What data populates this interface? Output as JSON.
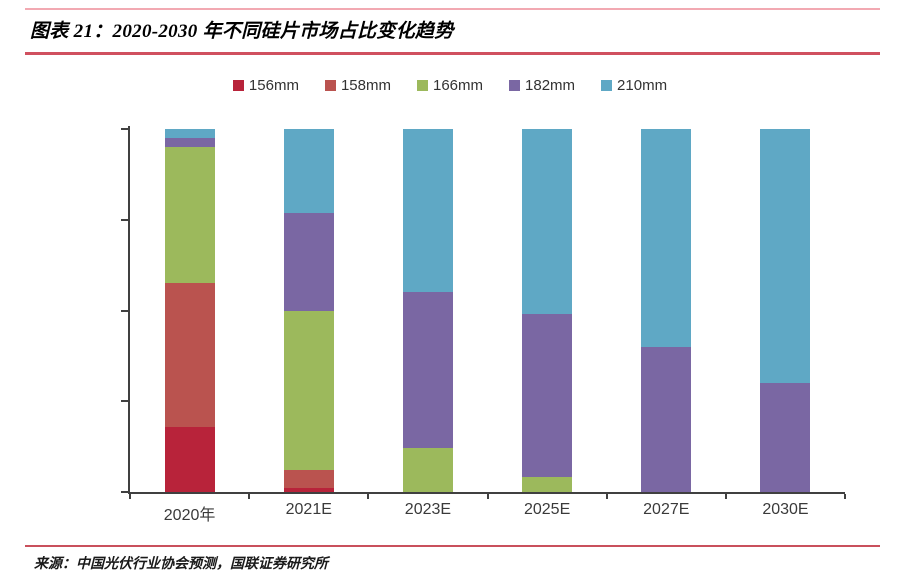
{
  "header": {
    "title": "图表 21：2020-2030 年不同硅片市场占比变化趋势"
  },
  "source": {
    "text": "来源：中国光伏行业协会预测，国联证券研究所"
  },
  "colors": {
    "rule_top": "#F2A9B2",
    "rule_title": "#D0505F",
    "rule_source": "#C9505C",
    "axis": "#404040"
  },
  "chart_data": {
    "type": "bar",
    "stacked": true,
    "unit": "percent",
    "title": "图表 21：2020-2030 年不同硅片市场占比变化趋势",
    "categories": [
      "2020年",
      "2021E",
      "2023E",
      "2025E",
      "2027E",
      "2030E"
    ],
    "series": [
      {
        "name": "156mm",
        "color": "#B8233A",
        "values": [
          18,
          1,
          0,
          0,
          0,
          0
        ]
      },
      {
        "name": "158mm",
        "color": "#BA534F",
        "values": [
          39.5,
          5,
          0,
          0,
          0,
          0
        ]
      },
      {
        "name": "166mm",
        "color": "#9CB95C",
        "values": [
          37.5,
          44,
          12,
          4,
          0,
          0
        ]
      },
      {
        "name": "182mm",
        "color": "#7A67A3",
        "values": [
          2.5,
          27,
          43,
          45,
          40,
          30
        ]
      },
      {
        "name": "210mm",
        "color": "#5FA8C5",
        "values": [
          2.5,
          23,
          45,
          51,
          60,
          70
        ]
      }
    ],
    "xlabel": "",
    "ylabel": "",
    "ylim": [
      0,
      100
    ],
    "yticks": [
      "0%",
      "25%",
      "50%",
      "75%",
      "100%"
    ],
    "legend_position": "top",
    "grid": false
  }
}
